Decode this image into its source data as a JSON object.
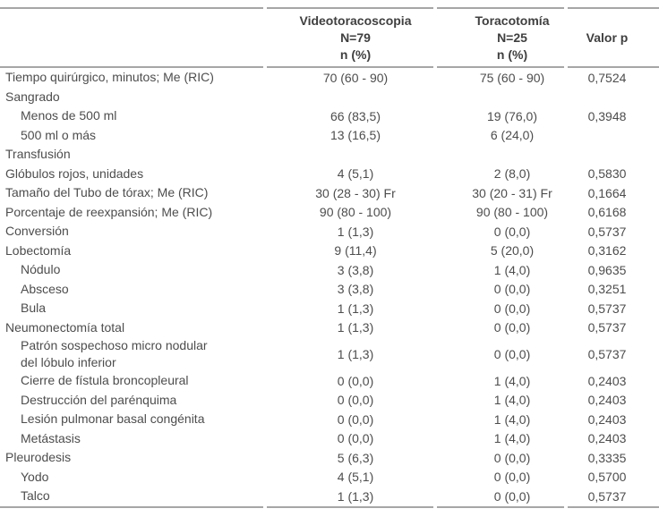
{
  "colors": {
    "text": "#4d4d4d",
    "text-strong": "#3f3f3f",
    "rule": "#a6a6a6"
  },
  "header": {
    "col2": {
      "title": "Videotoracoscopia",
      "n": "N=79",
      "unit": "n (%)"
    },
    "col3": {
      "title": "Toracotomía",
      "n": "N=25",
      "unit": "n (%)"
    },
    "col4": {
      "title": "Valor p"
    }
  },
  "table": {
    "rows": [
      {
        "label": "Tiempo quirúrgico, minutos; Me (RIC)",
        "indent": false,
        "vats": "70 (60 - 90)",
        "thor": "75 (60 - 90)",
        "p": "0,7524"
      },
      {
        "label": "Sangrado",
        "indent": false,
        "vats": "",
        "thor": "",
        "p": ""
      },
      {
        "label": "Menos de 500 ml",
        "indent": true,
        "vats": "66 (83,5)",
        "thor": "19 (76,0)",
        "p": "0,3948"
      },
      {
        "label": "500 ml o más",
        "indent": true,
        "vats": "13 (16,5)",
        "thor": "6 (24,0)",
        "p": ""
      },
      {
        "label": "Transfusión",
        "indent": false,
        "vats": "",
        "thor": "",
        "p": ""
      },
      {
        "label": "Glóbulos rojos, unidades",
        "indent": false,
        "vats": "4 (5,1)",
        "thor": "2 (8,0)",
        "p": "0,5830"
      },
      {
        "label": "Tamaño del Tubo de tórax; Me (RIC)",
        "indent": false,
        "vats": "30 (28 - 30) Fr",
        "thor": "30 (20 - 31) Fr",
        "p": "0,1664"
      },
      {
        "label": "Porcentaje de reexpansión; Me (RIC)",
        "indent": false,
        "vats": "90 (80 - 100)",
        "thor": "90 (80 - 100)",
        "p": "0,6168"
      },
      {
        "label": "Conversión",
        "indent": false,
        "vats": "1 (1,3)",
        "thor": "0 (0,0)",
        "p": "0,5737"
      },
      {
        "label": "Lobectomía",
        "indent": false,
        "vats": "9 (11,4)",
        "thor": "5 (20,0)",
        "p": "0,3162"
      },
      {
        "label": "Nódulo",
        "indent": true,
        "vats": "3 (3,8)",
        "thor": "1 (4,0)",
        "p": "0,9635"
      },
      {
        "label": "Absceso",
        "indent": true,
        "vats": "3 (3,8)",
        "thor": "0 (0,0)",
        "p": "0,3251"
      },
      {
        "label": "Bula",
        "indent": true,
        "vats": "1 (1,3)",
        "thor": "0 (0,0)",
        "p": "0,5737"
      },
      {
        "label": "Neumonectomía total",
        "indent": false,
        "vats": "1 (1,3)",
        "thor": "0 (0,0)",
        "p": "0,5737"
      },
      {
        "label": "Patrón sospechoso micro nodular\ndel lóbulo inferior",
        "indent": true,
        "vats": "1 (1,3)",
        "thor": "0 (0,0)",
        "p": "0,5737"
      },
      {
        "label": "Cierre de fístula broncopleural",
        "indent": true,
        "vats": "0 (0,0)",
        "thor": "1 (4,0)",
        "p": "0,2403"
      },
      {
        "label": "Destrucción del parénquima",
        "indent": true,
        "vats": "0 (0,0)",
        "thor": "1 (4,0)",
        "p": "0,2403"
      },
      {
        "label": "Lesión pulmonar basal congénita",
        "indent": true,
        "vats": "0 (0,0)",
        "thor": "1 (4,0)",
        "p": "0,2403"
      },
      {
        "label": "Metástasis",
        "indent": true,
        "vats": "0 (0,0)",
        "thor": "1 (4,0)",
        "p": "0,2403"
      },
      {
        "label": "Pleurodesis",
        "indent": false,
        "vats": "5 (6,3)",
        "thor": "0 (0,0)",
        "p": "0,3335"
      },
      {
        "label": "Yodo",
        "indent": true,
        "vats": "4 (5,1)",
        "thor": "0 (0,0)",
        "p": "0,5700"
      },
      {
        "label": "Talco",
        "indent": true,
        "vats": "1 (1,3)",
        "thor": "0 (0,0)",
        "p": "0,5737"
      }
    ]
  }
}
